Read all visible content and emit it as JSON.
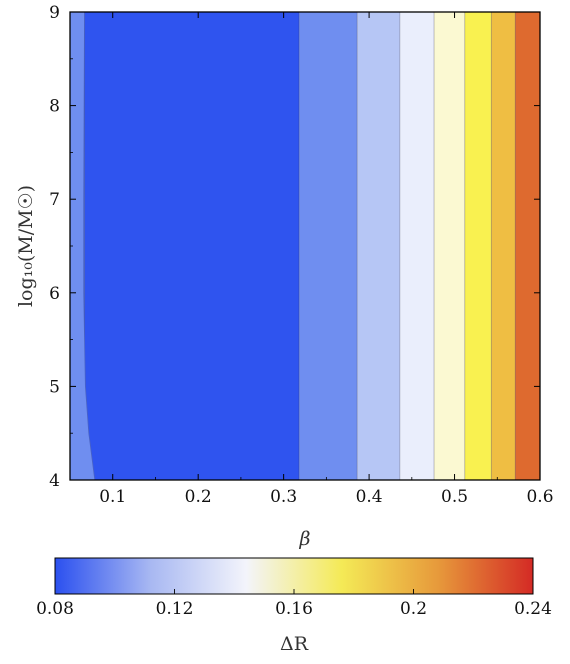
{
  "chart_data": {
    "type": "heatmap",
    "title": "",
    "xlabel": "β",
    "ylabel": "log₁₀(M/M☉)",
    "xlim": [
      0.05,
      0.6
    ],
    "ylim": [
      4,
      9
    ],
    "x_ticks": [
      "0.1",
      "0.2",
      "0.3",
      "0.4",
      "0.5",
      "0.6"
    ],
    "x_tick_values": [
      0.1,
      0.2,
      0.3,
      0.4,
      0.5,
      0.6
    ],
    "y_ticks": [
      "4",
      "5",
      "6",
      "7",
      "8",
      "9"
    ],
    "y_tick_values": [
      4,
      5,
      6,
      7,
      8,
      9
    ],
    "contour_bands": [
      {
        "beta_from": 0.05,
        "beta_to": 0.067,
        "color": "#6f8ef0"
      },
      {
        "beta_from": 0.067,
        "beta_to": 0.318,
        "color": "#2f54ef"
      },
      {
        "beta_from": 0.318,
        "beta_to": 0.386,
        "color": "#6f8ef0"
      },
      {
        "beta_from": 0.386,
        "beta_to": 0.436,
        "color": "#b6c6f5"
      },
      {
        "beta_from": 0.436,
        "beta_to": 0.476,
        "color": "#eaeefc"
      },
      {
        "beta_from": 0.476,
        "beta_to": 0.512,
        "color": "#fbf9d2"
      },
      {
        "beta_from": 0.512,
        "beta_to": 0.543,
        "color": "#f9f150"
      },
      {
        "beta_from": 0.543,
        "beta_to": 0.571,
        "color": "#efbe43"
      },
      {
        "beta_from": 0.571,
        "beta_to": 0.6,
        "color": "#de6a2f"
      }
    ],
    "boundary_curve": [
      [
        0.067,
        9
      ],
      [
        0.066,
        7
      ],
      [
        0.066,
        6
      ],
      [
        0.068,
        5
      ],
      [
        0.072,
        4.5
      ],
      [
        0.079,
        4
      ]
    ],
    "colorbar": {
      "label": "ΔR",
      "range": [
        0.08,
        0.24
      ],
      "ticks": [
        "0.08",
        "0.12",
        "0.16",
        "0.2",
        "0.24"
      ],
      "tick_values": [
        0.08,
        0.12,
        0.16,
        0.2,
        0.24
      ],
      "gradient": [
        "#2b50ef",
        "#a8b8f2",
        "#f3f4fb",
        "#f4ea56",
        "#e79a3b",
        "#d42a25"
      ]
    }
  }
}
